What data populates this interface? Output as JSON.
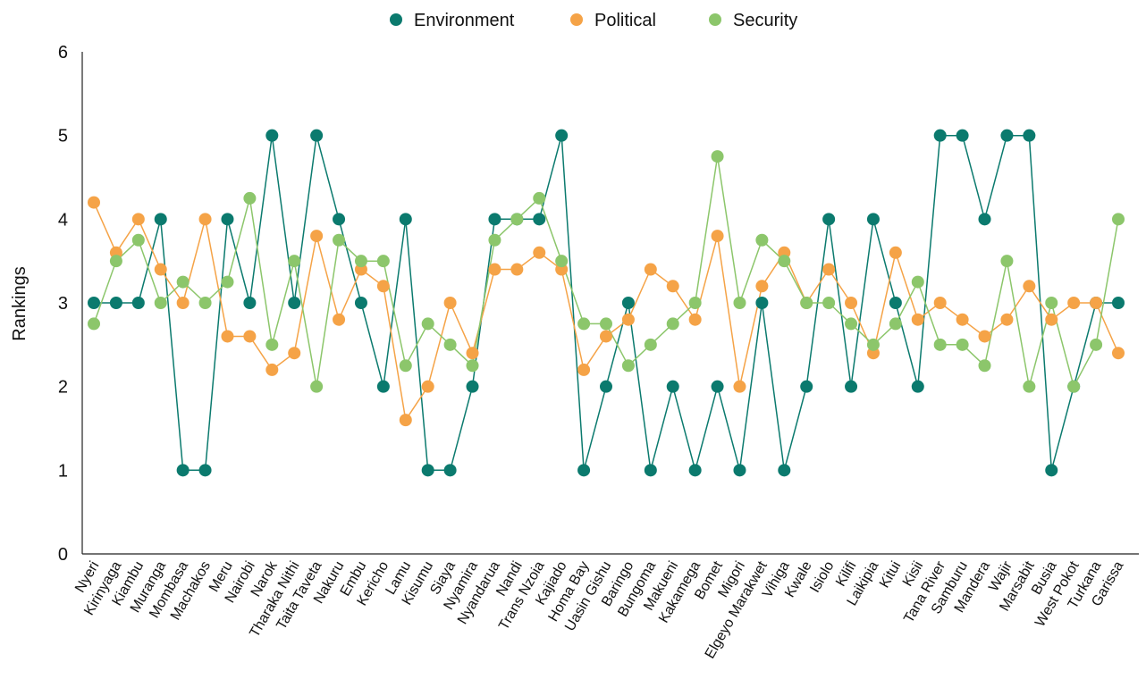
{
  "chart_data": {
    "type": "line",
    "title": "",
    "xlabel": "",
    "ylabel": "Rankings",
    "ylim": [
      0,
      6
    ],
    "yticks": [
      0,
      1,
      2,
      3,
      4,
      5,
      6
    ],
    "grid": false,
    "legend_position": "top-center",
    "categories": [
      "Nyeri",
      "Kirinyaga",
      "Kiambu",
      "Muranga",
      "Mombasa",
      "Machakos",
      "Meru",
      "Nairobi",
      "Narok",
      "Tharaka Nithi",
      "Taita Taveta",
      "Nakuru",
      "Embu",
      "Kericho",
      "Lamu",
      "Kisumu",
      "Siaya",
      "Nyamira",
      "Nyandarua",
      "Nandi",
      "Trans Nzoia",
      "Kajiado",
      "Homa Bay",
      "Uasin Gishu",
      "Baringo",
      "Bungoma",
      "Makueni",
      "Kakamega",
      "Bomet",
      "Migori",
      "Elgeyo Marakwet",
      "Vihiga",
      "Kwale",
      "Isiolo",
      "Kilifi",
      "Laikipia",
      "Kitui",
      "Kisii",
      "Tana River",
      "Samburu",
      "Mandera",
      "Wajir",
      "Marsabit",
      "Busia",
      "West Pokot",
      "Turkana",
      "Garissa"
    ],
    "series": [
      {
        "name": "Environment",
        "color": "#0b7a6e",
        "values": [
          3,
          3,
          3,
          4,
          1,
          1,
          4,
          3,
          5,
          3,
          5,
          4,
          3,
          2,
          4,
          1,
          1,
          2,
          4,
          4,
          4,
          5,
          1,
          2,
          3,
          1,
          2,
          1,
          2,
          1,
          3,
          1,
          2,
          4,
          2,
          4,
          3,
          2,
          5,
          5,
          4,
          5,
          5,
          1,
          2,
          3,
          3
        ]
      },
      {
        "name": "Political",
        "color": "#f5a347",
        "values": [
          4.2,
          3.6,
          4,
          3.4,
          3,
          4,
          2.6,
          2.6,
          2.2,
          2.4,
          3.8,
          2.8,
          3.4,
          3.2,
          1.6,
          2,
          3,
          2.4,
          3.4,
          3.4,
          3.6,
          3.4,
          2.2,
          2.6,
          2.8,
          3.4,
          3.2,
          2.8,
          3.8,
          2,
          3.2,
          3.6,
          3,
          3.4,
          3,
          2.4,
          3.6,
          2.8,
          3,
          2.8,
          2.6,
          2.8,
          3.2,
          2.8,
          3,
          3,
          2.4
        ]
      },
      {
        "name": "Security",
        "color": "#8cc66b",
        "values": [
          2.75,
          3.5,
          3.75,
          3,
          3.25,
          3,
          3.25,
          4.25,
          2.5,
          3.5,
          2,
          3.75,
          3.5,
          3.5,
          2.25,
          2.75,
          2.5,
          2.25,
          3.75,
          4,
          4.25,
          3.5,
          2.75,
          2.75,
          2.25,
          2.5,
          2.75,
          3,
          4.75,
          3,
          3.75,
          3.5,
          3,
          3,
          2.75,
          2.5,
          2.75,
          3.25,
          2.5,
          2.5,
          2.25,
          3.5,
          2,
          3,
          2,
          2.5,
          4
        ]
      }
    ]
  }
}
